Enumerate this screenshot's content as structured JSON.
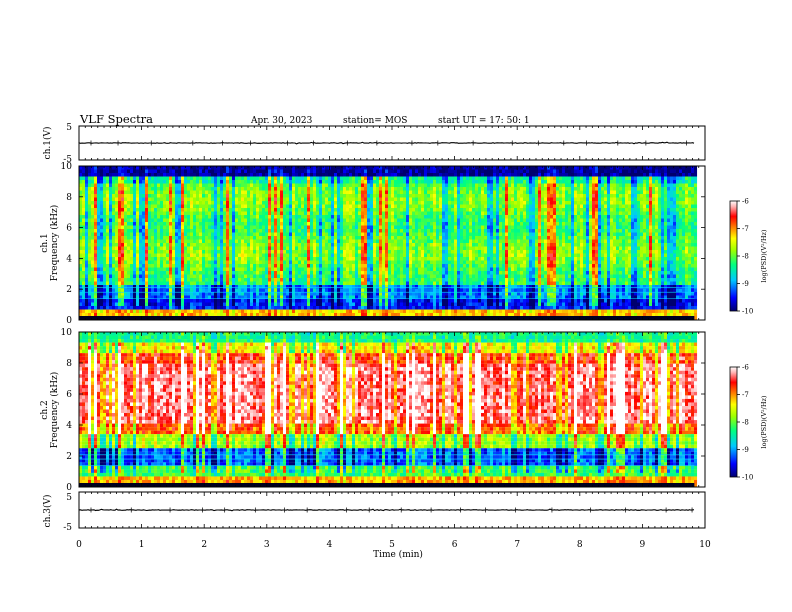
{
  "header": {
    "title": "VLF Spectra",
    "date": "Apr. 30, 2023",
    "station": "station= MOS",
    "start_ut": "start  UT  =  17: 50: 1"
  },
  "chart_data": {
    "type": "heatmap",
    "xlabel": "Time  (min)",
    "xlim": [
      0,
      10
    ],
    "x_ticks": [
      "0",
      "1",
      "2",
      "3",
      "4",
      "5",
      "6",
      "7",
      "8",
      "9",
      "10"
    ],
    "data_end_min": 9.83,
    "panels": [
      {
        "kind": "waveform",
        "ylabel": "ch.1(V)",
        "ylim": [
          -5,
          5
        ],
        "y_ticks": [
          "5",
          "-5"
        ],
        "baseline": 0
      },
      {
        "kind": "spectrogram",
        "ylabel_1": "ch.1",
        "ylabel_2": "Frequency  (kHz)",
        "ylim": [
          0,
          10
        ],
        "y_ticks": [
          "0",
          "2",
          "4",
          "6",
          "8",
          "10"
        ],
        "colorbar": {
          "label": "log(PSD)(V²/Hz)",
          "range": [
            -10,
            -6
          ],
          "ticks": [
            "-6",
            "-7",
            "-8",
            "-9",
            "-10"
          ]
        }
      },
      {
        "kind": "spectrogram",
        "ylabel_1": "ch.2",
        "ylabel_2": "Frequency  (kHz)",
        "ylim": [
          0,
          10
        ],
        "y_ticks": [
          "0",
          "2",
          "4",
          "6",
          "8",
          "10"
        ],
        "colorbar": {
          "label": "log(PSD)(V²/Hz)",
          "range": [
            -10,
            -6
          ],
          "ticks": [
            "-6",
            "-7",
            "-8",
            "-9",
            "-10"
          ]
        }
      },
      {
        "kind": "waveform",
        "ylabel": "ch.3(V)",
        "ylim": [
          -5,
          5
        ],
        "y_ticks": [
          "5",
          "-5"
        ],
        "baseline": 0
      }
    ]
  }
}
